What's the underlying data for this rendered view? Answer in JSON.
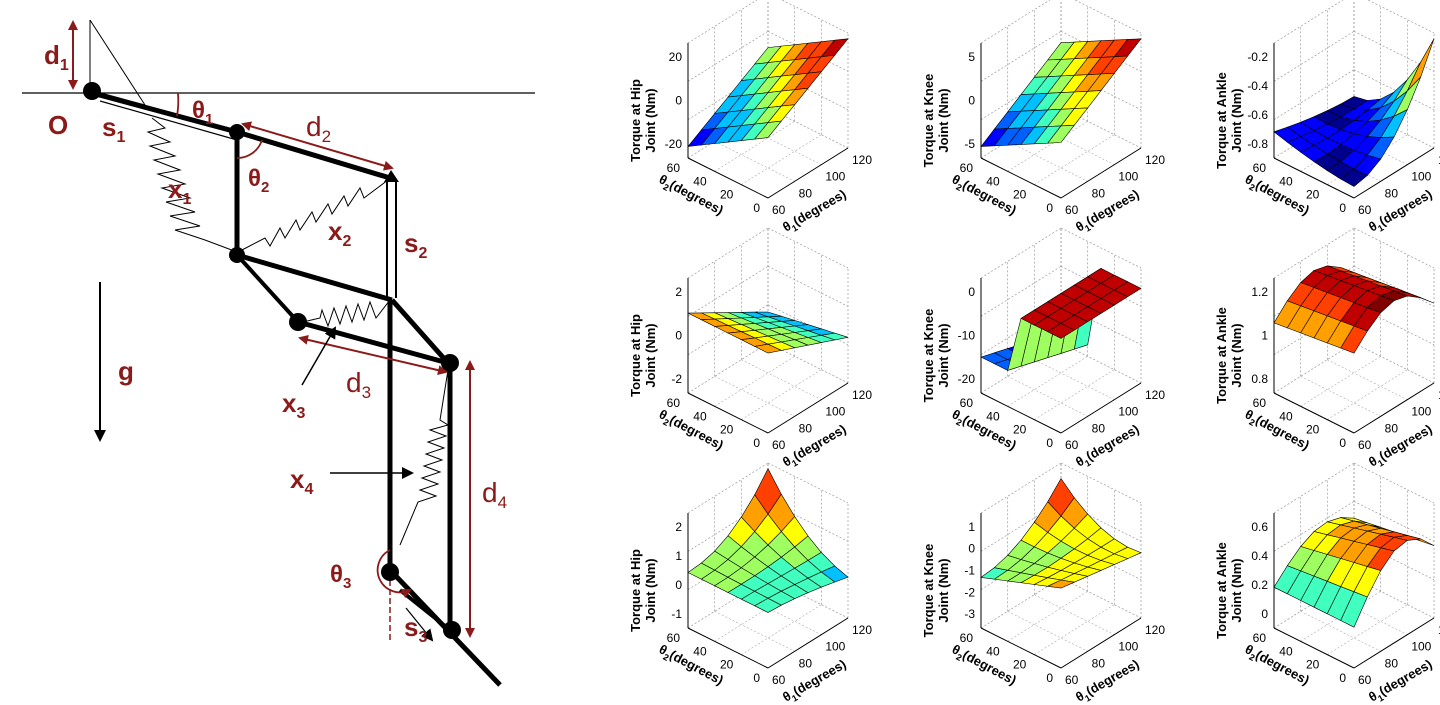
{
  "diagram": {
    "labels": {
      "d1": "d",
      "d1_sub": "1",
      "O": "O",
      "s1": "s",
      "s1_sub": "1",
      "theta1": "θ",
      "theta1_sub": "1",
      "d2": "d",
      "d2_sub": "2",
      "theta2": "θ",
      "theta2_sub": "2",
      "x1": "x",
      "x1_sub": "1",
      "x2": "x",
      "x2_sub": "2",
      "s2": "s",
      "s2_sub": "2",
      "g": "g",
      "d3": "d",
      "d3_sub": "3",
      "x3": "x",
      "x3_sub": "3",
      "x4": "x",
      "x4_sub": "4",
      "d4": "d",
      "d4_sub": "4",
      "theta3": "θ",
      "theta3_sub": "3",
      "s3": "s",
      "s3_sub": "3"
    },
    "colors": {
      "label": "#8b1a1a",
      "link": "#000000"
    }
  },
  "plots": [
    {
      "ylabel_1": "Torque at Hip",
      "ylabel_2": "Joint (Nm)",
      "zticks": [
        "20",
        "0",
        "-20"
      ]
    },
    {
      "ylabel_1": "Torque at Knee",
      "ylabel_2": "Joint (Nm)",
      "zticks": [
        "5",
        "0",
        "-5"
      ]
    },
    {
      "ylabel_1": "Torque at Ankle",
      "ylabel_2": "Joint (Nm)",
      "zticks": [
        "-0.2",
        "-0.4",
        "-0.6",
        "-0.8"
      ]
    },
    {
      "ylabel_1": "Torque at Hip",
      "ylabel_2": "Joint (Nm)",
      "zticks": [
        "2",
        "0",
        "-2"
      ]
    },
    {
      "ylabel_1": "Torque at Knee",
      "ylabel_2": "Joint (Nm)",
      "zticks": [
        "0",
        "-10",
        "-20"
      ]
    },
    {
      "ylabel_1": "Torque at Ankle",
      "ylabel_2": "Joint (Nm)",
      "zticks": [
        "1.2",
        "1",
        "0.8"
      ]
    },
    {
      "ylabel_1": "Torque at Hip",
      "ylabel_2": "Joint (Nm)",
      "zticks": [
        "2",
        "1",
        "0",
        "-1"
      ]
    },
    {
      "ylabel_1": "Torque at Knee",
      "ylabel_2": "Joint (Nm)",
      "zticks": [
        "1",
        "0",
        "-1",
        "-2",
        "-3"
      ]
    },
    {
      "ylabel_1": "Torque at Ankle",
      "ylabel_2": "Joint (Nm)",
      "zticks": [
        "0.6",
        "0.4",
        "0.2",
        "0"
      ]
    }
  ],
  "common_axes": {
    "theta2_ticks": [
      "60",
      "40",
      "20",
      "0"
    ],
    "theta1_ticks": [
      "60",
      "80",
      "100",
      "120"
    ],
    "theta2_label": "θ",
    "theta2_label_sub": "2",
    "theta2_label_unit": "(degrees)",
    "theta1_label": "θ",
    "theta1_label_sub": "1",
    "theta1_label_unit": "(degrees)"
  },
  "colormap": [
    "#00008f",
    "#0000ff",
    "#0060ff",
    "#00c0ff",
    "#40ffbf",
    "#9fff60",
    "#ffff00",
    "#ffa000",
    "#ff4000",
    "#c00000",
    "#800000"
  ]
}
